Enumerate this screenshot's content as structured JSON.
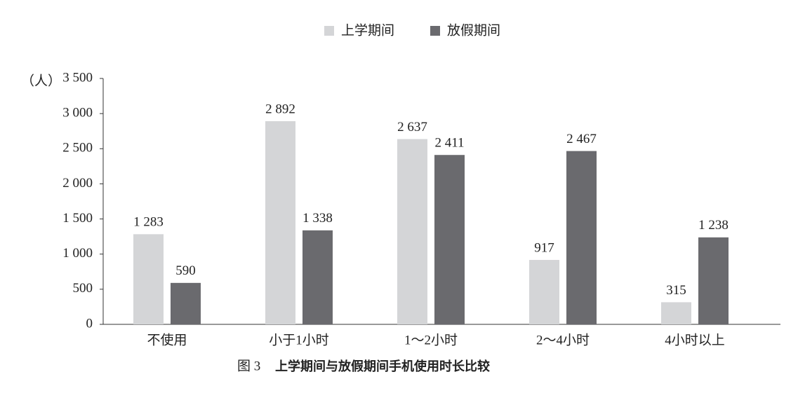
{
  "chart_data": {
    "type": "bar",
    "figure_label": "图 3",
    "title": "上学期间与放假期间手机使用时长比较",
    "y_label": "（人）",
    "categories": [
      "不使用",
      "小于1小时",
      "1～2小时",
      "2～4小时",
      "4小时以上"
    ],
    "series": [
      {
        "name": "上学期间",
        "color": "#d4d5d7",
        "values": [
          1283,
          2892,
          2637,
          917,
          315
        ],
        "value_labels": [
          "1 283",
          "2 892",
          "2 637",
          "917",
          "315"
        ]
      },
      {
        "name": "放假期间",
        "color": "#6a6a6e",
        "values": [
          590,
          1338,
          2411,
          2467,
          1238
        ],
        "value_labels": [
          "590",
          "1 338",
          "2 411",
          "2 467",
          "1 238"
        ]
      }
    ],
    "ylim": [
      0,
      3500
    ],
    "yticks": [
      0,
      500,
      {
        "value": 1000,
        "label": "1 000"
      },
      {
        "value": 1500,
        "label": "1 500"
      },
      {
        "value": 2000,
        "label": "2 000"
      },
      {
        "value": 2500,
        "label": "2 500"
      },
      {
        "value": 3000,
        "label": "3 000"
      },
      {
        "value": 3500,
        "label": "3 500"
      }
    ],
    "legend": "top",
    "grid": false
  }
}
